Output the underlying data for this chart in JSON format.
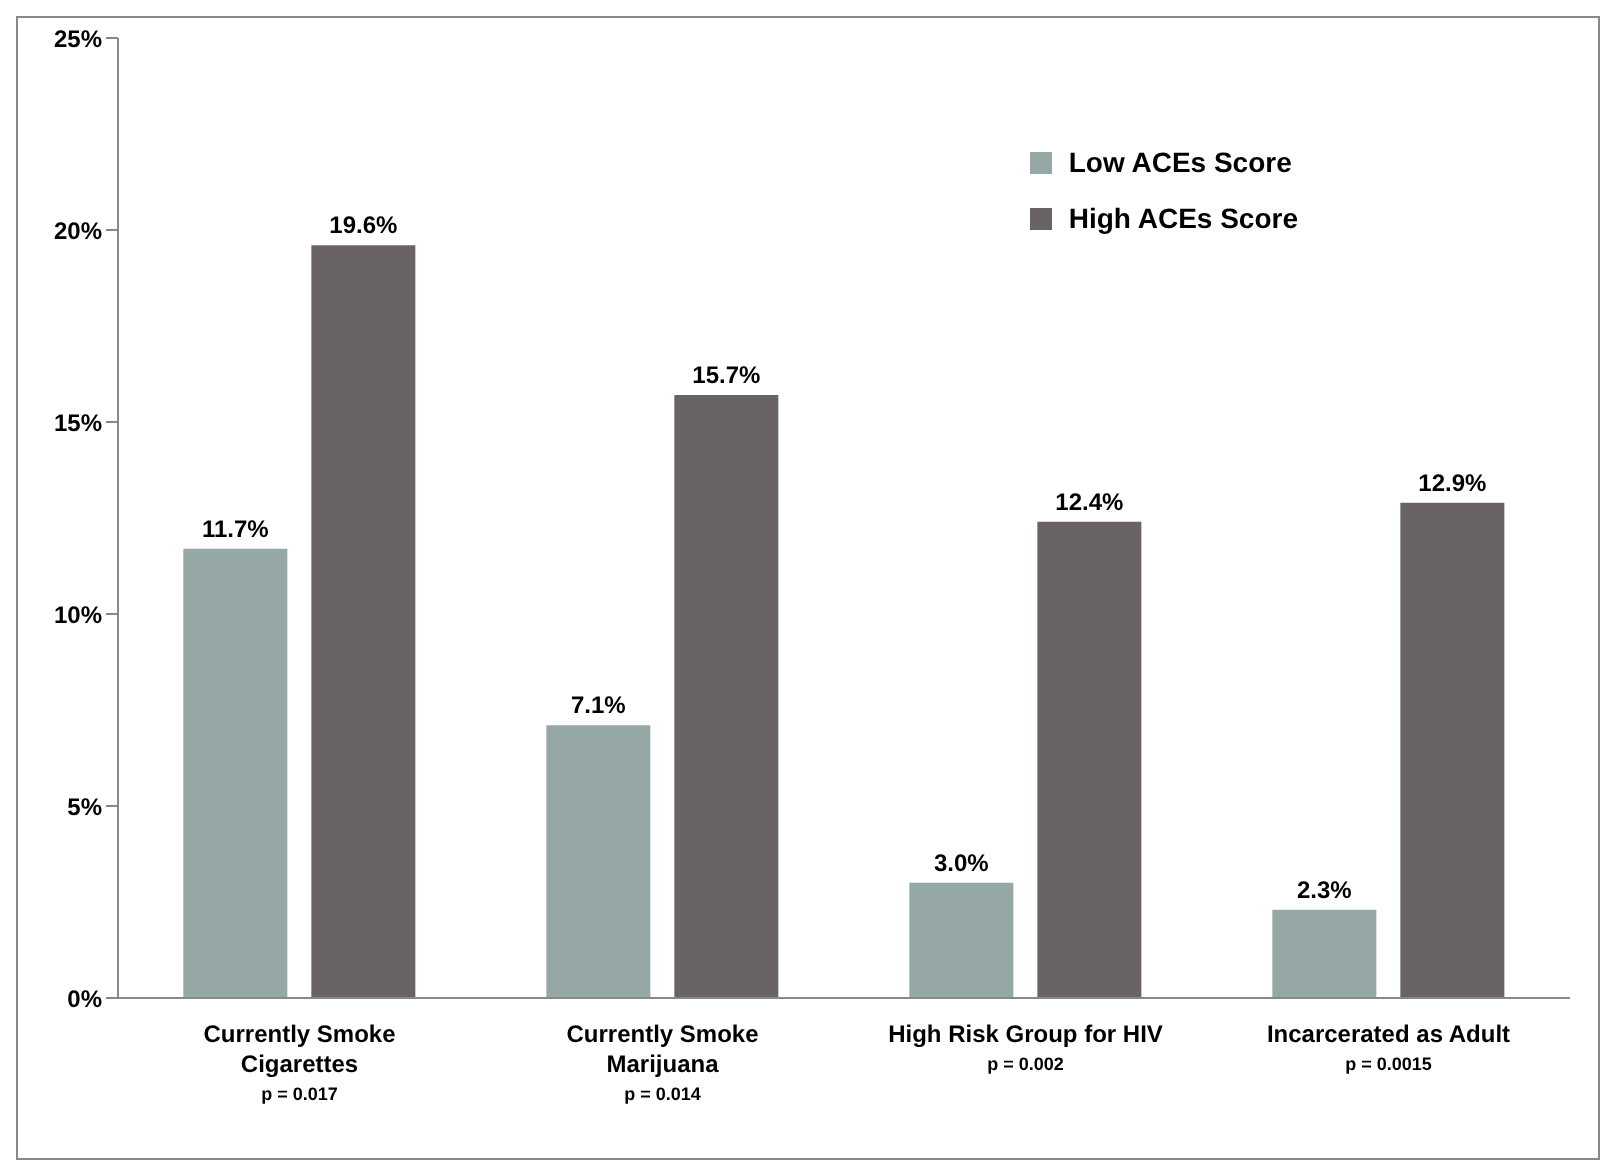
{
  "chart_data": {
    "type": "bar",
    "categories": [
      "Currently Smoke Cigarettes",
      "Currently Smoke Marijuana",
      "High Risk Group for HIV",
      "Incarcerated as Adult"
    ],
    "series": [
      {
        "name": "Low ACEs Score",
        "color": "#95a8a6",
        "values": [
          11.7,
          7.1,
          3.0,
          2.3
        ],
        "value_labels": [
          "11.7%",
          "7.1%",
          "3.0%",
          "2.3%"
        ]
      },
      {
        "name": "High ACEs Score",
        "color": "#696463",
        "values": [
          19.6,
          15.7,
          12.4,
          12.9
        ],
        "value_labels": [
          "19.6%",
          "15.7%",
          "12.4%",
          "12.9%"
        ]
      }
    ],
    "ylim": [
      0,
      25
    ],
    "yticks": [
      {
        "value": 0,
        "label": "0%"
      },
      {
        "value": 5,
        "label": "5%"
      },
      {
        "value": 10,
        "label": "10%"
      },
      {
        "value": 15,
        "label": "15%"
      },
      {
        "value": 20,
        "label": "20%"
      },
      {
        "value": 25,
        "label": "25%"
      }
    ],
    "grid": false,
    "legend": "top right",
    "annotations": [
      "p = 0.017",
      "p = 0.014",
      "p = 0.002",
      "p = 0.0015"
    ]
  }
}
